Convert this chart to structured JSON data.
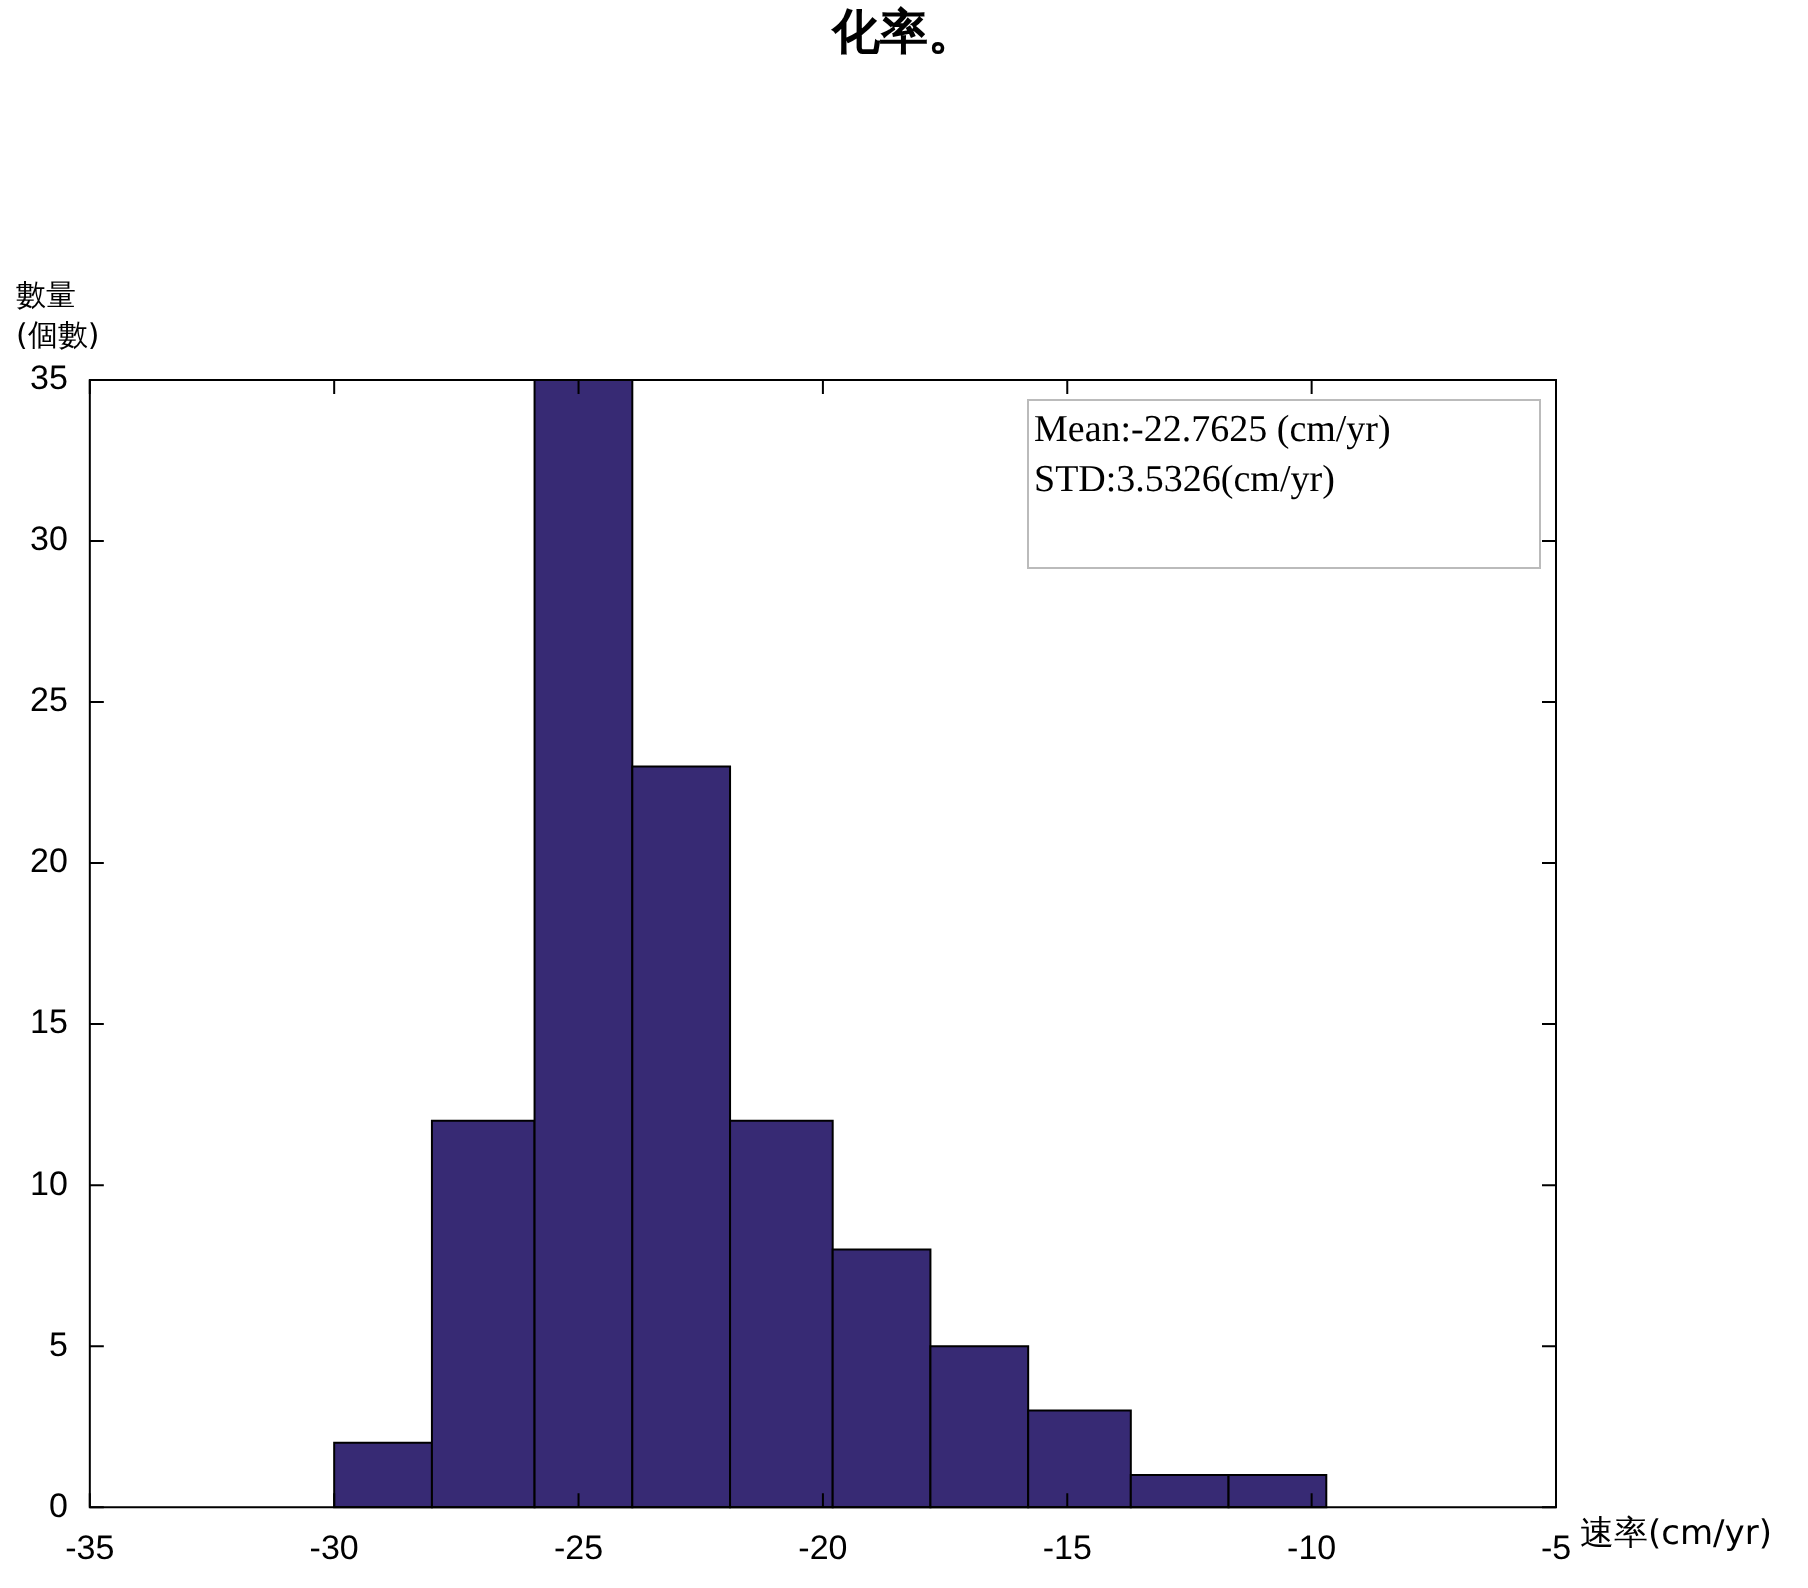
{
  "chart_data": {
    "type": "histogram",
    "title": "化率。",
    "ylabel": "數量\n(個數)",
    "xlabel": "速率(cm/yr)",
    "bins": [
      -30,
      -28,
      -25.9,
      -23.9,
      -21.9,
      -19.8,
      -17.8,
      -15.8,
      -13.7,
      -11.7,
      -9.7
    ],
    "values": [
      2,
      12,
      35,
      23,
      12,
      8,
      5,
      3,
      1,
      1
    ],
    "color": "#372a74",
    "xlim": [
      -35,
      -5
    ],
    "xticks": [
      -35,
      -30,
      -25,
      -20,
      -15,
      -10,
      -5
    ],
    "ylim": [
      0,
      35
    ],
    "yticks": [
      0,
      5,
      10,
      15,
      20,
      25,
      30,
      35
    ],
    "annotations": [
      "Mean:-22.7625 (cm/yr)",
      "STD:3.5326(cm/yr)"
    ],
    "grid": false,
    "legend": false
  }
}
